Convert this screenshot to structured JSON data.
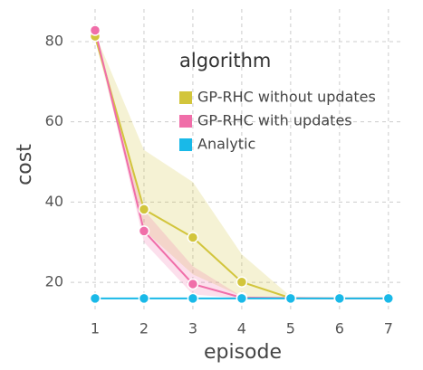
{
  "chart_data": {
    "type": "line",
    "x": [
      1,
      2,
      3,
      4,
      5,
      6,
      7
    ],
    "xlim": [
      0.5,
      7.3
    ],
    "ylim": [
      12.6,
      88.1
    ],
    "xticks": [
      1,
      2,
      3,
      4,
      5,
      6,
      7
    ],
    "yticks": [
      20,
      40,
      60,
      80
    ],
    "x_label": "episode",
    "y_label": "cost",
    "legend_title": "algorithm",
    "legend": "top-right",
    "grid": true,
    "series": [
      {
        "name": "GP-RHC without updates",
        "color": "#d2c53c",
        "values": [
          81.3,
          38.2,
          31.2,
          20.1,
          16.1,
          16,
          16
        ],
        "lower": [
          80.5,
          33,
          22,
          16.5,
          16,
          16,
          16
        ],
        "upper": [
          82,
          53,
          45,
          27,
          16.5,
          16,
          16
        ]
      },
      {
        "name": "GP-RHC with updates",
        "color": "#f06ea9",
        "values": [
          82.8,
          32.8,
          19.6,
          16.2,
          16.1,
          16,
          16
        ],
        "lower": [
          82.5,
          30,
          17,
          16,
          16,
          16,
          16
        ],
        "upper": [
          83,
          38,
          24,
          16.5,
          16.2,
          16,
          16
        ]
      },
      {
        "name": "Analytic",
        "color": "#19b9e8",
        "values": [
          16,
          16,
          16,
          16,
          16,
          16,
          16
        ]
      }
    ]
  }
}
